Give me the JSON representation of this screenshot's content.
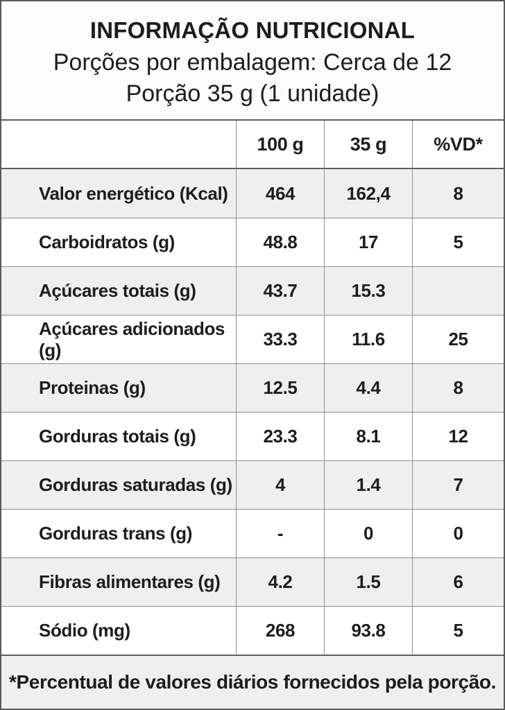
{
  "header": {
    "title": "INFORMAÇÃO NUTRICIONAL",
    "servings_line": "Porções por embalagem: Cerca de 12",
    "portion_line": "Porção 35 g (1 unidade)"
  },
  "columns": {
    "label": "",
    "per100": "100 g",
    "per35": "35 g",
    "dv": "%VD*"
  },
  "rows": [
    {
      "label": "Valor energético (Kcal)",
      "per100": "464",
      "per35": "162,4",
      "dv": "8"
    },
    {
      "label": "Carboidratos (g)",
      "per100": "48.8",
      "per35": "17",
      "dv": "5"
    },
    {
      "label": "Açúcares totais (g)",
      "per100": "43.7",
      "per35": "15.3",
      "dv": ""
    },
    {
      "label": "Açúcares adicionados (g)",
      "per100": "33.3",
      "per35": "11.6",
      "dv": "25"
    },
    {
      "label": "Proteinas (g)",
      "per100": "12.5",
      "per35": "4.4",
      "dv": "8"
    },
    {
      "label": "Gorduras totais (g)",
      "per100": "23.3",
      "per35": "8.1",
      "dv": "12"
    },
    {
      "label": "Gorduras saturadas (g)",
      "per100": "4",
      "per35": "1.4",
      "dv": "7"
    },
    {
      "label": "Gorduras trans (g)",
      "per100": "-",
      "per35": "0",
      "dv": "0"
    },
    {
      "label": "Fibras alimentares (g)",
      "per100": "4.2",
      "per35": "1.5",
      "dv": "6"
    },
    {
      "label": "Sódio (mg)",
      "per100": "268",
      "per35": "93.8",
      "dv": "5"
    }
  ],
  "footer": {
    "note": "*Percentual de valores diários fornecidos pela porção."
  },
  "colors": {
    "text": "#1d1d1d",
    "row_alt_bg": "#efefef",
    "border_outer": "#5a5a5a",
    "border_light": "#8e8e8e"
  }
}
